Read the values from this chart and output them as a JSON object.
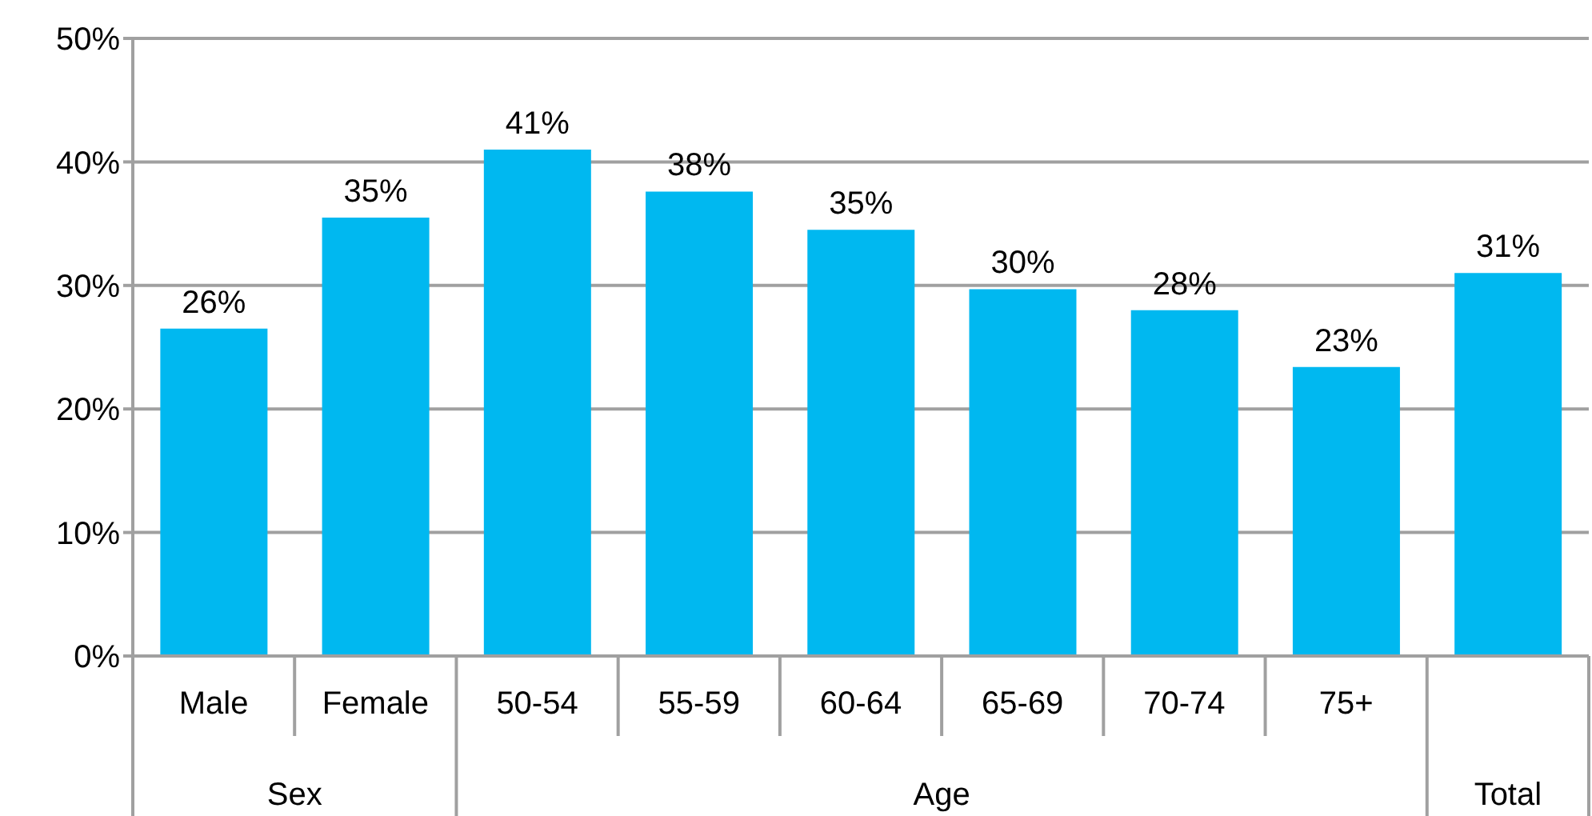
{
  "chart_data": {
    "type": "bar",
    "categories": [
      "Male",
      "Female",
      "50-54",
      "55-59",
      "60-64",
      "65-69",
      "70-74",
      "75+",
      null
    ],
    "values": [
      26.5,
      35.5,
      41,
      37.6,
      34.5,
      29.7,
      28,
      23.4,
      31
    ],
    "value_labels": [
      "26%",
      "35%",
      "41%",
      "38%",
      "35%",
      "30%",
      "28%",
      "23%",
      "31%"
    ],
    "color": "#00b8f0",
    "ylim": [
      0,
      50
    ],
    "yticks": [
      {
        "value": 0,
        "label": "0%"
      },
      {
        "value": 10,
        "label": "10%"
      },
      {
        "value": 20,
        "label": "20%"
      },
      {
        "value": 30,
        "label": "30%"
      },
      {
        "value": 40,
        "label": "40%"
      },
      {
        "value": 50,
        "label": "50%"
      }
    ],
    "grid": "y",
    "annotations": [
      "Sex",
      "Age",
      "Total"
    ]
  }
}
